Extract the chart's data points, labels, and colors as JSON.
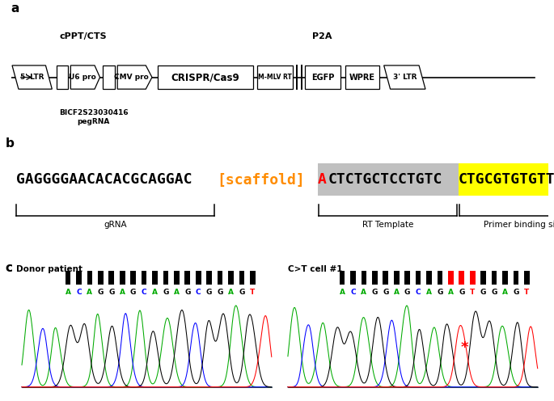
{
  "panel_a_label": "a",
  "panel_b_label": "b",
  "panel_c_label": "c",
  "top_label_left": "cPPT/CTS",
  "top_label_right": "P2A",
  "seq_black_part": "GAGGGGAACACACGCAGGAC",
  "seq_scaffold": "[scaffold]",
  "seq_red": "A",
  "seq_gray_bg": "CTCTGCTCCTGTC",
  "seq_yellow_bg": "CTGCGTGTGTTCC",
  "label_grna": "gRNA",
  "label_rt": "RT Template",
  "label_pbs": "Primer binding site",
  "donor_label": "Donor patient",
  "cell_label": "C>T cell #1",
  "donor_seq": [
    "A",
    "C",
    "A",
    "G",
    "G",
    "A",
    "G",
    "C",
    "A",
    "G",
    "A",
    "G",
    "C",
    "G",
    "G",
    "A",
    "G",
    "T"
  ],
  "cell_seq": [
    "A",
    "C",
    "A",
    "G",
    "G",
    "A",
    "G",
    "C",
    "A",
    "G",
    "A",
    "G",
    "T",
    "G",
    "G",
    "A",
    "G",
    "T"
  ],
  "cell_red_bars": [
    10,
    11,
    12
  ],
  "dna_colors": {
    "A": "#00aa00",
    "C": "#0000ff",
    "G": "#000000",
    "T": "#ff0000"
  },
  "bg_color": "#ffffff",
  "bicf_label": "BICF2S23030416\npegRNA"
}
